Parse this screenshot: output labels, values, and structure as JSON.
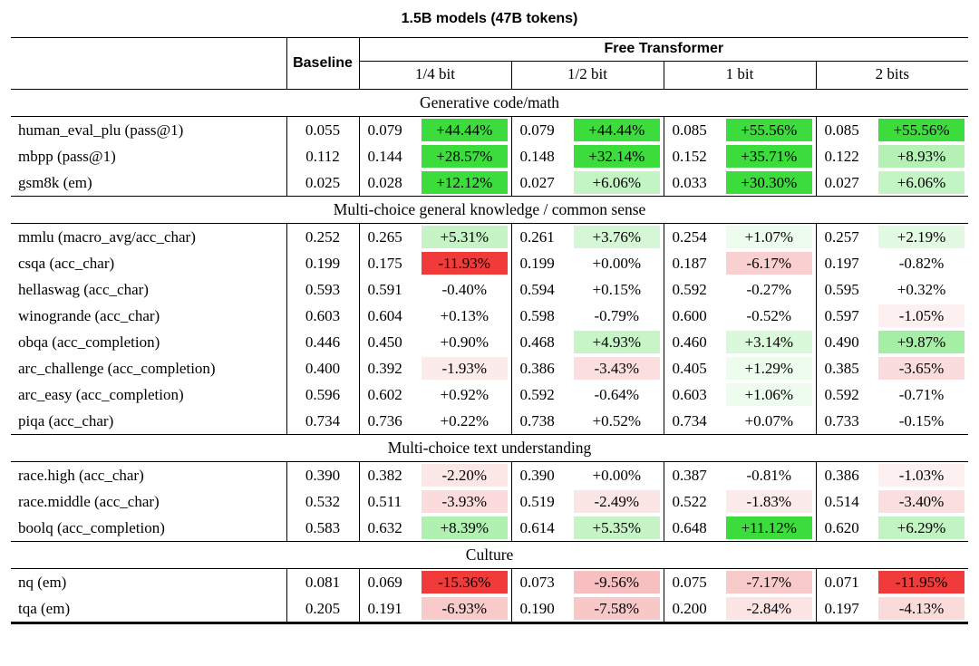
{
  "title": "1.5B models (47B tokens)",
  "header": {
    "baseline_label": "Baseline",
    "group_label": "Free Transformer",
    "variant_labels": [
      "1/4 bit",
      "1/2 bit",
      "1 bit",
      "2 bits"
    ]
  },
  "colors": {
    "strong_green": "#3cdc3c",
    "strong_red": "#f13b3b",
    "light_green": "#c3f4c3",
    "light_pink": "#fbdede",
    "text": "#000000"
  },
  "sections": [
    {
      "label": "Generative code/math",
      "rows": [
        {
          "name": "human_eval_plu (pass@1)",
          "baseline": "0.055",
          "cells": [
            {
              "value": "0.079",
              "delta": "+44.44%",
              "bg": "#3cdc3c"
            },
            {
              "value": "0.079",
              "delta": "+44.44%",
              "bg": "#3cdc3c"
            },
            {
              "value": "0.085",
              "delta": "+55.56%",
              "bg": "#3cdc3c"
            },
            {
              "value": "0.085",
              "delta": "+55.56%",
              "bg": "#3cdc3c"
            }
          ]
        },
        {
          "name": "mbpp (pass@1)",
          "baseline": "0.112",
          "cells": [
            {
              "value": "0.144",
              "delta": "+28.57%",
              "bg": "#3cdc3c"
            },
            {
              "value": "0.148",
              "delta": "+32.14%",
              "bg": "#3cdc3c"
            },
            {
              "value": "0.152",
              "delta": "+35.71%",
              "bg": "#3cdc3c"
            },
            {
              "value": "0.122",
              "delta": "+8.93%",
              "bg": "#b5f1b5"
            }
          ]
        },
        {
          "name": "gsm8k (em)",
          "baseline": "0.025",
          "cells": [
            {
              "value": "0.028",
              "delta": "+12.12%",
              "bg": "#3cdc3c"
            },
            {
              "value": "0.027",
              "delta": "+6.06%",
              "bg": "#c3f4c3"
            },
            {
              "value": "0.033",
              "delta": "+30.30%",
              "bg": "#3cdc3c"
            },
            {
              "value": "0.027",
              "delta": "+6.06%",
              "bg": "#c3f4c3"
            }
          ]
        }
      ]
    },
    {
      "label": "Multi-choice general knowledge / common sense",
      "rows": [
        {
          "name": "mmlu (macro_avg/acc_char)",
          "baseline": "0.252",
          "cells": [
            {
              "value": "0.265",
              "delta": "+5.31%",
              "bg": "#c6f4c6"
            },
            {
              "value": "0.261",
              "delta": "+3.76%",
              "bg": "#d6f7d6"
            },
            {
              "value": "0.254",
              "delta": "+1.07%",
              "bg": "#eefcee"
            },
            {
              "value": "0.257",
              "delta": "+2.19%",
              "bg": "#e2fae2"
            }
          ]
        },
        {
          "name": "csqa (acc_char)",
          "baseline": "0.199",
          "cells": [
            {
              "value": "0.175",
              "delta": "-11.93%",
              "bg": "#f13b3b"
            },
            {
              "value": "0.199",
              "delta": "+0.00%",
              "bg": "#ffffff"
            },
            {
              "value": "0.187",
              "delta": "-6.17%",
              "bg": "#f9cfcf"
            },
            {
              "value": "0.197",
              "delta": "-0.82%",
              "bg": "#ffffff"
            }
          ]
        },
        {
          "name": "hellaswag (acc_char)",
          "baseline": "0.593",
          "cells": [
            {
              "value": "0.591",
              "delta": "-0.40%",
              "bg": "#ffffff"
            },
            {
              "value": "0.594",
              "delta": "+0.15%",
              "bg": "#ffffff"
            },
            {
              "value": "0.592",
              "delta": "-0.27%",
              "bg": "#ffffff"
            },
            {
              "value": "0.595",
              "delta": "+0.32%",
              "bg": "#ffffff"
            }
          ]
        },
        {
          "name": "winogrande (acc_char)",
          "baseline": "0.603",
          "cells": [
            {
              "value": "0.604",
              "delta": "+0.13%",
              "bg": "#ffffff"
            },
            {
              "value": "0.598",
              "delta": "-0.79%",
              "bg": "#ffffff"
            },
            {
              "value": "0.600",
              "delta": "-0.52%",
              "bg": "#ffffff"
            },
            {
              "value": "0.597",
              "delta": "-1.05%",
              "bg": "#fdf0f0"
            }
          ]
        },
        {
          "name": "obqa (acc_completion)",
          "baseline": "0.446",
          "cells": [
            {
              "value": "0.450",
              "delta": "+0.90%",
              "bg": "#ffffff"
            },
            {
              "value": "0.468",
              "delta": "+4.93%",
              "bg": "#c8f5c8"
            },
            {
              "value": "0.460",
              "delta": "+3.14%",
              "bg": "#daf8da"
            },
            {
              "value": "0.490",
              "delta": "+9.87%",
              "bg": "#a5eea5"
            }
          ]
        },
        {
          "name": "arc_challenge (acc_completion)",
          "baseline": "0.400",
          "cells": [
            {
              "value": "0.392",
              "delta": "-1.93%",
              "bg": "#fcebeb"
            },
            {
              "value": "0.386",
              "delta": "-3.43%",
              "bg": "#fbdede"
            },
            {
              "value": "0.405",
              "delta": "+1.29%",
              "bg": "#edfced"
            },
            {
              "value": "0.385",
              "delta": "-3.65%",
              "bg": "#fbdcdc"
            }
          ]
        },
        {
          "name": "arc_easy (acc_completion)",
          "baseline": "0.596",
          "cells": [
            {
              "value": "0.602",
              "delta": "+0.92%",
              "bg": "#ffffff"
            },
            {
              "value": "0.592",
              "delta": "-0.64%",
              "bg": "#ffffff"
            },
            {
              "value": "0.603",
              "delta": "+1.06%",
              "bg": "#eefcee"
            },
            {
              "value": "0.592",
              "delta": "-0.71%",
              "bg": "#ffffff"
            }
          ]
        },
        {
          "name": "piqa (acc_char)",
          "baseline": "0.734",
          "cells": [
            {
              "value": "0.736",
              "delta": "+0.22%",
              "bg": "#ffffff"
            },
            {
              "value": "0.738",
              "delta": "+0.52%",
              "bg": "#ffffff"
            },
            {
              "value": "0.734",
              "delta": "+0.07%",
              "bg": "#ffffff"
            },
            {
              "value": "0.733",
              "delta": "-0.15%",
              "bg": "#ffffff"
            }
          ]
        }
      ]
    },
    {
      "label": "Multi-choice text understanding",
      "rows": [
        {
          "name": "race.high (acc_char)",
          "baseline": "0.390",
          "cells": [
            {
              "value": "0.382",
              "delta": "-2.20%",
              "bg": "#fce7e7"
            },
            {
              "value": "0.390",
              "delta": "+0.00%",
              "bg": "#ffffff"
            },
            {
              "value": "0.387",
              "delta": "-0.81%",
              "bg": "#ffffff"
            },
            {
              "value": "0.386",
              "delta": "-1.03%",
              "bg": "#fdf0f0"
            }
          ]
        },
        {
          "name": "race.middle (acc_char)",
          "baseline": "0.532",
          "cells": [
            {
              "value": "0.511",
              "delta": "-3.93%",
              "bg": "#fbdbdb"
            },
            {
              "value": "0.519",
              "delta": "-2.49%",
              "bg": "#fce5e5"
            },
            {
              "value": "0.522",
              "delta": "-1.83%",
              "bg": "#fcebeb"
            },
            {
              "value": "0.514",
              "delta": "-3.40%",
              "bg": "#fbdede"
            }
          ]
        },
        {
          "name": "boolq (acc_completion)",
          "baseline": "0.583",
          "cells": [
            {
              "value": "0.632",
              "delta": "+8.39%",
              "bg": "#b0f0b0"
            },
            {
              "value": "0.614",
              "delta": "+5.35%",
              "bg": "#c6f4c6"
            },
            {
              "value": "0.648",
              "delta": "+11.12%",
              "bg": "#3cdc3c"
            },
            {
              "value": "0.620",
              "delta": "+6.29%",
              "bg": "#c2f3c2"
            }
          ]
        }
      ]
    },
    {
      "label": "Culture",
      "rows": [
        {
          "name": "nq (em)",
          "baseline": "0.081",
          "cells": [
            {
              "value": "0.069",
              "delta": "-15.36%",
              "bg": "#f13b3b"
            },
            {
              "value": "0.073",
              "delta": "-9.56%",
              "bg": "#f7bfbf"
            },
            {
              "value": "0.075",
              "delta": "-7.17%",
              "bg": "#f8caca"
            },
            {
              "value": "0.071",
              "delta": "-11.95%",
              "bg": "#f13b3b"
            }
          ]
        },
        {
          "name": "tqa (em)",
          "baseline": "0.205",
          "cells": [
            {
              "value": "0.191",
              "delta": "-6.93%",
              "bg": "#f9caca"
            },
            {
              "value": "0.190",
              "delta": "-7.58%",
              "bg": "#f8c8c8"
            },
            {
              "value": "0.200",
              "delta": "-2.84%",
              "bg": "#fce4e4"
            },
            {
              "value": "0.197",
              "delta": "-4.13%",
              "bg": "#fbdada"
            }
          ]
        }
      ]
    }
  ]
}
